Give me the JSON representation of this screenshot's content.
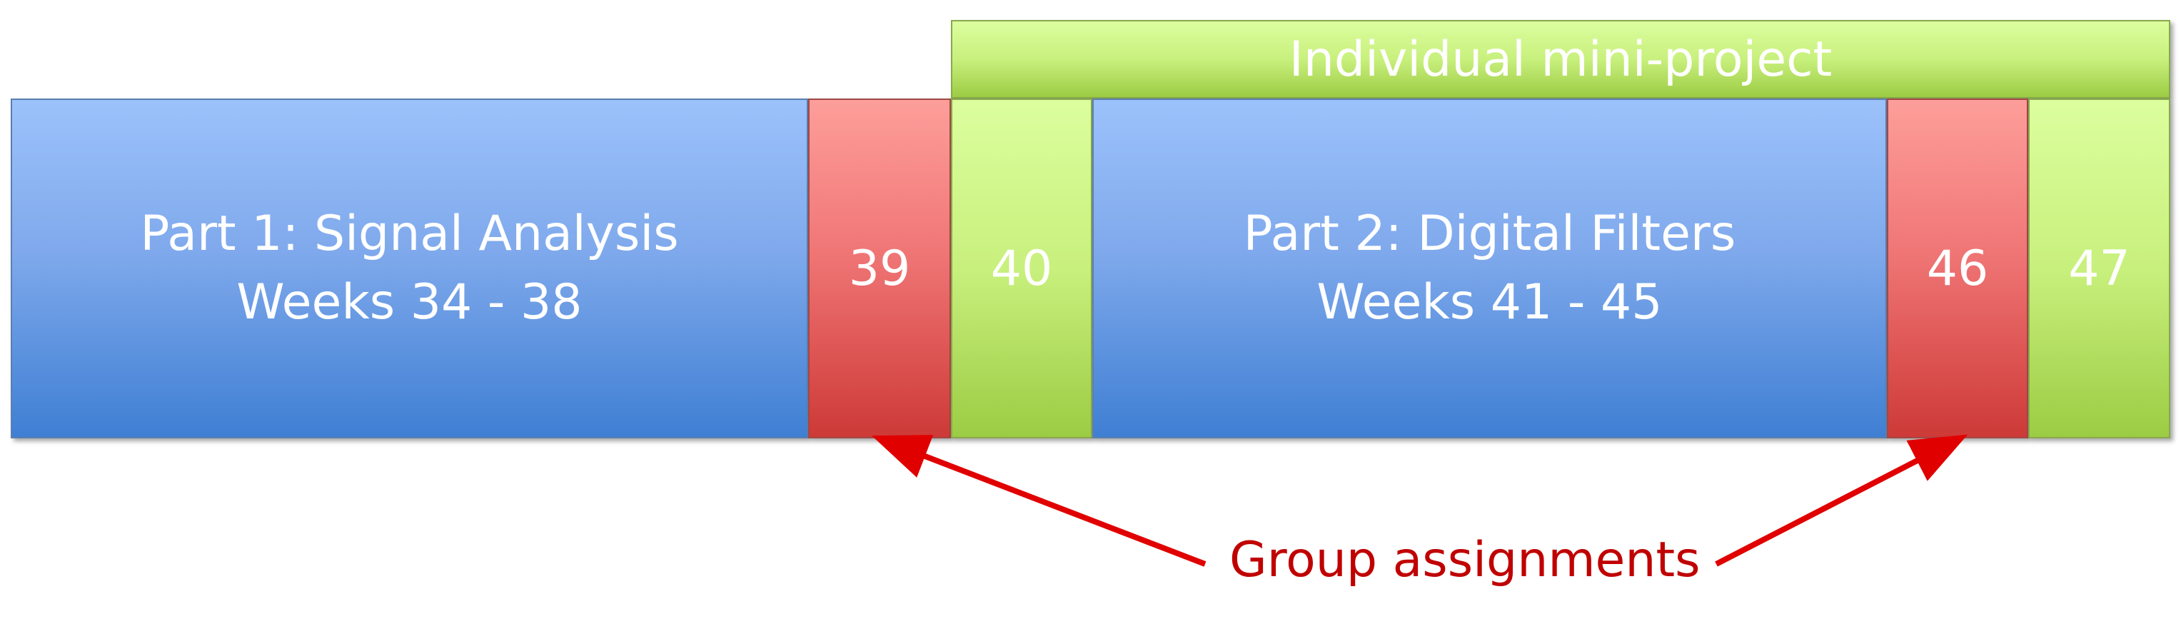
{
  "diagram": {
    "header": "Individual mini-project",
    "part1": {
      "title": "Part 1: Signal Analysis",
      "weeks": "Weeks 34 - 38"
    },
    "part2": {
      "title": "Part 2: Digital Filters",
      "weeks": "Weeks 41 - 45"
    },
    "weeks": {
      "w39": "39",
      "w40": "40",
      "w46": "46",
      "w47": "47"
    },
    "callout": "Group assignments",
    "colors": {
      "blue": "#7fa9ec",
      "red": "#f07676",
      "green": "#c8f07d",
      "arrow": "#e00000",
      "callout_text": "#c00000"
    }
  }
}
